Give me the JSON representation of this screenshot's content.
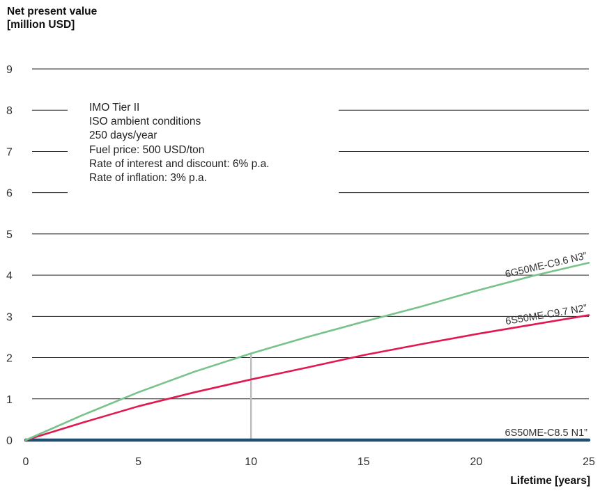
{
  "chart_data": {
    "type": "line",
    "ylabel_lines": [
      "Net present value",
      "[million USD]"
    ],
    "xlabel": "Lifetime [years]",
    "xlim": [
      0,
      25
    ],
    "ylim": [
      0,
      9
    ],
    "xticks": [
      0,
      5,
      10,
      15,
      20,
      25
    ],
    "yticks": [
      0,
      1,
      2,
      3,
      4,
      5,
      6,
      7,
      8,
      9
    ],
    "grid": "horizontal",
    "annotation_lines": [
      "IMO Tier II",
      "ISO ambient conditions",
      "250 days/year",
      "Fuel price: 500 USD/ton",
      "Rate of interest and discount: 6% p.a.",
      "Rate of inflation: 3% p.a."
    ],
    "marker": {
      "x": 10,
      "y": 2.1
    },
    "series": [
      {
        "name": "6G50ME-C9.6 N3”",
        "color": "#78c28c",
        "x": [
          0,
          2.5,
          5,
          7.5,
          10,
          12.5,
          15,
          17.5,
          20,
          22.5,
          25
        ],
        "values": [
          0,
          0.6,
          1.16,
          1.66,
          2.1,
          2.5,
          2.87,
          3.23,
          3.62,
          3.98,
          4.3
        ]
      },
      {
        "name": "6S50ME-C9.7 N2”",
        "color": "#e0194f",
        "x": [
          0,
          2.5,
          5,
          7.5,
          10,
          12.5,
          15,
          17.5,
          20,
          22.5,
          25
        ],
        "values": [
          0,
          0.42,
          0.82,
          1.16,
          1.47,
          1.76,
          2.06,
          2.32,
          2.57,
          2.8,
          3.03
        ]
      },
      {
        "name": "6S50ME-C8.5 N1”",
        "color": "#1f4e6e",
        "x": [
          0,
          25
        ],
        "values": [
          0,
          0
        ]
      }
    ]
  }
}
